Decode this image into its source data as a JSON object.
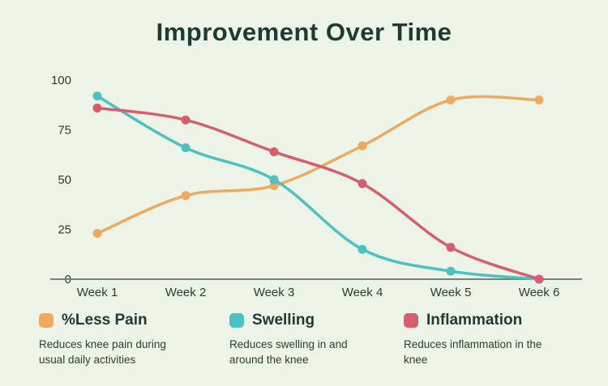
{
  "page": {
    "background_color": "#ebf4e7",
    "title_color": "#1e3a31"
  },
  "chart_data": {
    "type": "line",
    "title": "Improvement Over Time",
    "categories": [
      "Week 1",
      "Week 2",
      "Week 3",
      "Week 4",
      "Week 5",
      "Week 6"
    ],
    "y_ticks": [
      0,
      25,
      50,
      75,
      100
    ],
    "ylim": [
      0,
      100
    ],
    "grid": false,
    "legend_position": "bottom",
    "axis_line_color": "#75807a",
    "tick_label_color": "#2b3b34",
    "series": [
      {
        "name": "%Less Pain",
        "color": "#efa95e",
        "values": [
          23,
          42,
          47,
          67,
          90,
          90
        ],
        "description": "Reduces knee pain during usual daily activities"
      },
      {
        "name": "Swelling",
        "color": "#4dc0c3",
        "values": [
          92,
          66,
          50,
          15,
          4,
          0
        ],
        "description": "Reduces swelling in and around the knee"
      },
      {
        "name": "Inflammation",
        "color": "#d75e6d",
        "values": [
          86,
          80,
          64,
          48,
          16,
          0
        ],
        "description": "Reduces inflammation in the knee"
      }
    ]
  }
}
